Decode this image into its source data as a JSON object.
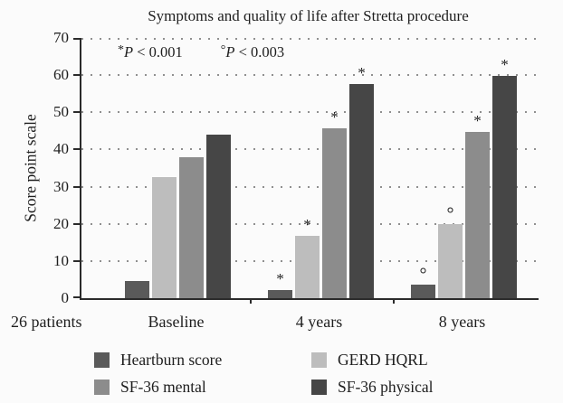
{
  "figure": {
    "footnote_left": "26 patients",
    "annotations": [
      {
        "marker": "*",
        "variable": "P",
        "comparison": "< 0.001"
      },
      {
        "marker": "°",
        "variable": "P",
        "comparison": "< 0.003"
      }
    ]
  },
  "chart_data": {
    "type": "bar",
    "title": "Symptoms and quality of life after Stretta procedure",
    "xlabel": "",
    "ylabel": "Score point scale",
    "ylim": [
      0,
      70
    ],
    "yticks": [
      0,
      10,
      20,
      30,
      40,
      50,
      60,
      70
    ],
    "grid": "horizontal dotted gridlines at each tick",
    "legend_position": "bottom, two columns",
    "categories": [
      "Baseline",
      "4 years",
      "8 years"
    ],
    "series": [
      {
        "name": "Heartburn score",
        "color": "#5a5a5a",
        "values": [
          4.7,
          2.3,
          3.6
        ],
        "significance_markers": [
          "",
          "*",
          "°"
        ]
      },
      {
        "name": "GERD HQRL",
        "color": "#bdbdbd",
        "values": [
          32.5,
          16.8,
          19.9
        ],
        "significance_markers": [
          "",
          "*",
          "°"
        ]
      },
      {
        "name": "SF-36 mental",
        "color": "#8c8c8c",
        "values": [
          38,
          45.6,
          44.7
        ],
        "significance_markers": [
          "",
          "*",
          "*"
        ]
      },
      {
        "name": "SF-36 physical",
        "color": "#464646",
        "values": [
          44,
          57.7,
          59.8
        ],
        "significance_markers": [
          "",
          "*",
          "*"
        ]
      }
    ]
  }
}
